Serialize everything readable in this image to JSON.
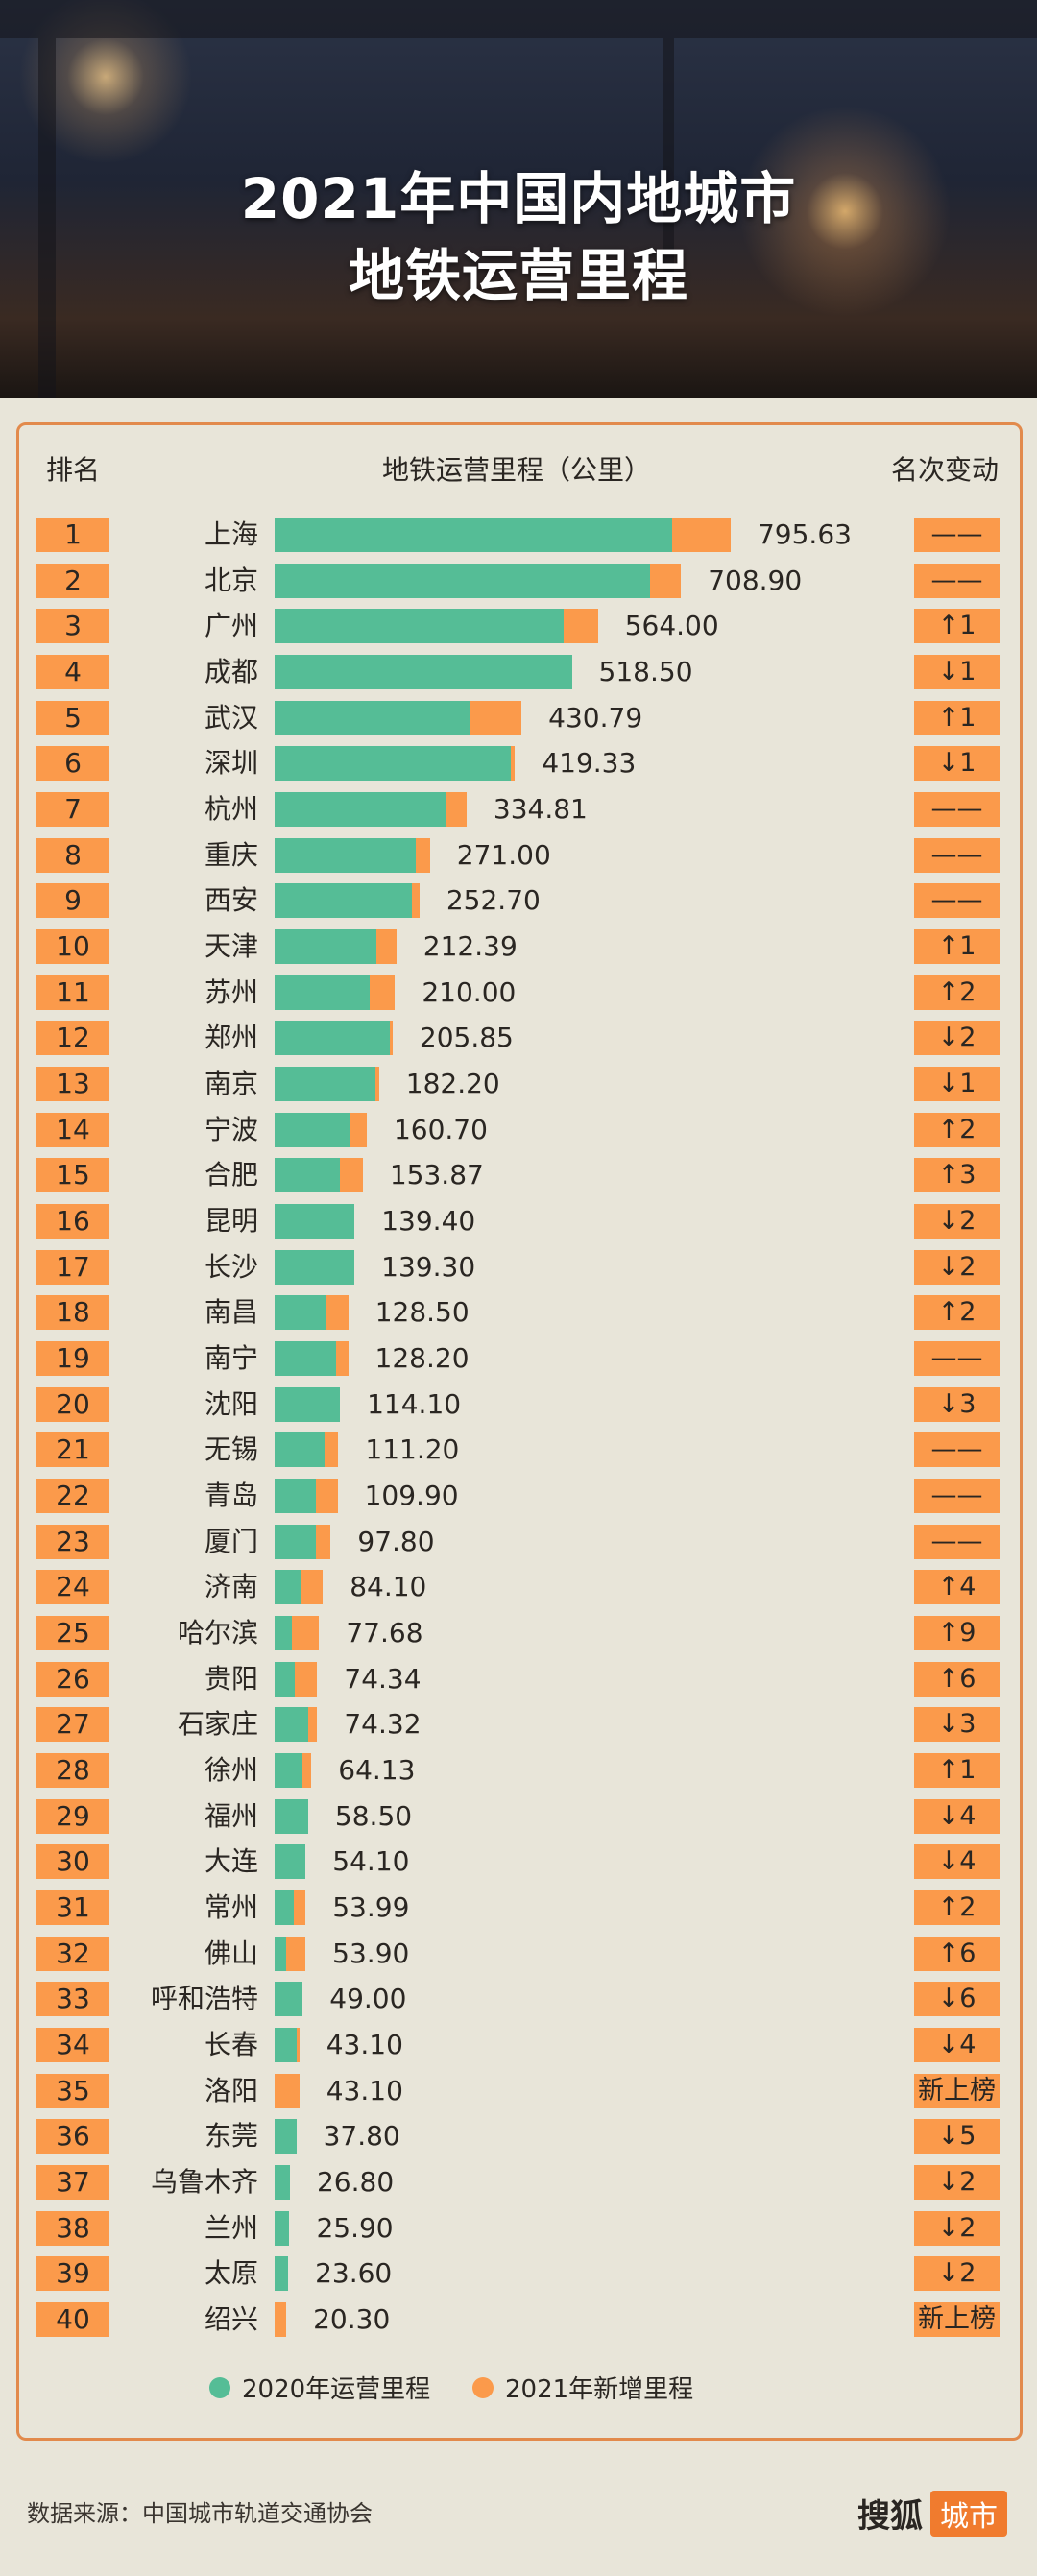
{
  "title_line1": "2021年中国内地城市",
  "title_line2": "地铁运营里程",
  "headers": {
    "rank": "排名",
    "mileage": "地铁运营里程（公里）",
    "change": "名次变动"
  },
  "legend": {
    "s2020": "2020年运营里程",
    "s2021": "2021年新增里程"
  },
  "colors": {
    "green": "#55bd96",
    "orange": "#fb9a4b"
  },
  "footer": {
    "source": "数据来源：中国城市轨道交通协会",
    "logo_text": "搜狐",
    "logo_box": "城市"
  },
  "chart_data": {
    "type": "bar",
    "orientation": "horizontal-stacked",
    "title": "2021年中国内地城市地铁运营里程",
    "unit": "公里",
    "legend_placement": "bottom",
    "series_names": [
      "2020年运营里程",
      "2021年新增里程"
    ],
    "rows": [
      {
        "rank": "1",
        "city": "上海",
        "total": "795.63",
        "new": 103,
        "change": "——"
      },
      {
        "rank": "2",
        "city": "北京",
        "total": "708.90",
        "new": 54,
        "change": "——"
      },
      {
        "rank": "3",
        "city": "广州",
        "total": "564.00",
        "new": 60,
        "change": "↑1"
      },
      {
        "rank": "4",
        "city": "成都",
        "total": "518.50",
        "new": 0,
        "change": "↓1"
      },
      {
        "rank": "5",
        "city": "武汉",
        "total": "430.79",
        "new": 91,
        "change": "↑1"
      },
      {
        "rank": "6",
        "city": "深圳",
        "total": "419.33",
        "new": 8,
        "change": "↓1"
      },
      {
        "rank": "7",
        "city": "杭州",
        "total": "334.81",
        "new": 35,
        "change": "——"
      },
      {
        "rank": "8",
        "city": "重庆",
        "total": "271.00",
        "new": 25,
        "change": "——"
      },
      {
        "rank": "9",
        "city": "西安",
        "total": "252.70",
        "new": 14,
        "change": "——"
      },
      {
        "rank": "10",
        "city": "天津",
        "total": "212.39",
        "new": 35,
        "change": "↑1"
      },
      {
        "rank": "11",
        "city": "苏州",
        "total": "210.00",
        "new": 45,
        "change": "↑2"
      },
      {
        "rank": "12",
        "city": "郑州",
        "total": "205.85",
        "new": 5,
        "change": "↓2"
      },
      {
        "rank": "13",
        "city": "南京",
        "total": "182.20",
        "new": 6,
        "change": "↓1"
      },
      {
        "rank": "14",
        "city": "宁波",
        "total": "160.70",
        "new": 29,
        "change": "↑2"
      },
      {
        "rank": "15",
        "city": "合肥",
        "total": "153.87",
        "new": 40,
        "change": "↑3"
      },
      {
        "rank": "16",
        "city": "昆明",
        "total": "139.40",
        "new": 0,
        "change": "↓2"
      },
      {
        "rank": "17",
        "city": "长沙",
        "total": "139.30",
        "new": 0,
        "change": "↓2"
      },
      {
        "rank": "18",
        "city": "南昌",
        "total": "128.50",
        "new": 39,
        "change": "↑2"
      },
      {
        "rank": "19",
        "city": "南宁",
        "total": "128.20",
        "new": 21,
        "change": "——"
      },
      {
        "rank": "20",
        "city": "沈阳",
        "total": "114.10",
        "new": 0,
        "change": "↓3"
      },
      {
        "rank": "21",
        "city": "无锡",
        "total": "111.20",
        "new": 24,
        "change": "——"
      },
      {
        "rank": "22",
        "city": "青岛",
        "total": "109.90",
        "new": 38,
        "change": "——"
      },
      {
        "rank": "23",
        "city": "厦门",
        "total": "97.80",
        "new": 25,
        "change": "——"
      },
      {
        "rank": "24",
        "city": "济南",
        "total": "84.10",
        "new": 37,
        "change": "↑4"
      },
      {
        "rank": "25",
        "city": "哈尔滨",
        "total": "77.68",
        "new": 47,
        "change": "↑9"
      },
      {
        "rank": "26",
        "city": "贵阳",
        "total": "74.34",
        "new": 39,
        "change": "↑6"
      },
      {
        "rank": "27",
        "city": "石家庄",
        "total": "74.32",
        "new": 16,
        "change": "↓3"
      },
      {
        "rank": "28",
        "city": "徐州",
        "total": "64.13",
        "new": 16,
        "change": "↑1"
      },
      {
        "rank": "29",
        "city": "福州",
        "total": "58.50",
        "new": 0,
        "change": "↓4"
      },
      {
        "rank": "30",
        "city": "大连",
        "total": "54.10",
        "new": 0,
        "change": "↓4"
      },
      {
        "rank": "31",
        "city": "常州",
        "total": "53.99",
        "new": 21,
        "change": "↑2"
      },
      {
        "rank": "32",
        "city": "佛山",
        "total": "53.90",
        "new": 33,
        "change": "↑6"
      },
      {
        "rank": "33",
        "city": "呼和浩特",
        "total": "49.00",
        "new": 0,
        "change": "↓6"
      },
      {
        "rank": "34",
        "city": "长春",
        "total": "43.10",
        "new": 5,
        "change": "↓4"
      },
      {
        "rank": "35",
        "city": "洛阳",
        "total": "43.10",
        "new": 43.1,
        "change": "新上榜"
      },
      {
        "rank": "36",
        "city": "东莞",
        "total": "37.80",
        "new": 0,
        "change": "↓5"
      },
      {
        "rank": "37",
        "city": "乌鲁木齐",
        "total": "26.80",
        "new": 0,
        "change": "↓2"
      },
      {
        "rank": "38",
        "city": "兰州",
        "total": "25.90",
        "new": 0,
        "change": "↓2"
      },
      {
        "rank": "39",
        "city": "太原",
        "total": "23.60",
        "new": 0,
        "change": "↓2"
      },
      {
        "rank": "40",
        "city": "绍兴",
        "total": "20.30",
        "new": 20.3,
        "change": "新上榜"
      }
    ]
  }
}
